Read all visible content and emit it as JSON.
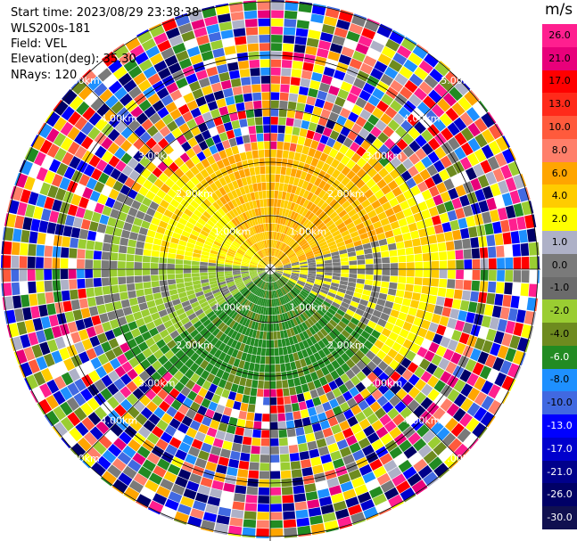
{
  "header": {
    "start_time": "Start time: 2023/08/29 23:38:38",
    "instrument": "WLS200s-181",
    "field": "Field: VEL",
    "elevation": "Elevation(deg): 35.30",
    "nrays": "NRays: 120"
  },
  "colorbar": {
    "unit": "m/s",
    "bins": [
      {
        "label": "26.0",
        "color": "#ff1f8f",
        "text": "#000000"
      },
      {
        "label": "21.0",
        "color": "#e8007a",
        "text": "#000000"
      },
      {
        "label": "17.0",
        "color": "#ff0000",
        "text": "#000000"
      },
      {
        "label": "13.0",
        "color": "#ff2a1a",
        "text": "#000000"
      },
      {
        "label": "10.0",
        "color": "#ff5a3c",
        "text": "#000000"
      },
      {
        "label": "8.0",
        "color": "#ff7f6a",
        "text": "#000000"
      },
      {
        "label": "6.0",
        "color": "#ffa500",
        "text": "#000000"
      },
      {
        "label": "4.0",
        "color": "#ffcc00",
        "text": "#000000"
      },
      {
        "label": "2.0",
        "color": "#ffff00",
        "text": "#000000"
      },
      {
        "label": "1.0",
        "color": "#aeb1c7",
        "text": "#000000"
      },
      {
        "label": "0.0",
        "color": "#7a7a7a",
        "text": "#000000"
      },
      {
        "label": "-1.0",
        "color": "#6b6b6b",
        "text": "#000000"
      },
      {
        "label": "-2.0",
        "color": "#9acd32",
        "text": "#000000"
      },
      {
        "label": "-4.0",
        "color": "#6e8b1f",
        "text": "#000000"
      },
      {
        "label": "-6.0",
        "color": "#228b22",
        "text": "#ffffff"
      },
      {
        "label": "-8.0",
        "color": "#1e90ff",
        "text": "#000000"
      },
      {
        "label": "-10.0",
        "color": "#4169e1",
        "text": "#000000"
      },
      {
        "label": "-13.0",
        "color": "#0000ff",
        "text": "#ffffff"
      },
      {
        "label": "-17.0",
        "color": "#0000cd",
        "text": "#ffffff"
      },
      {
        "label": "-21.0",
        "color": "#00008b",
        "text": "#ffffff"
      },
      {
        "label": "-26.0",
        "color": "#000066",
        "text": "#ffffff"
      },
      {
        "label": "-30.0",
        "color": "#101050",
        "text": "#ffffff"
      }
    ]
  },
  "range_rings": {
    "labels": [
      "1.00km",
      "2.00km",
      "3.00km",
      "4.00km",
      "5.00km"
    ]
  }
}
